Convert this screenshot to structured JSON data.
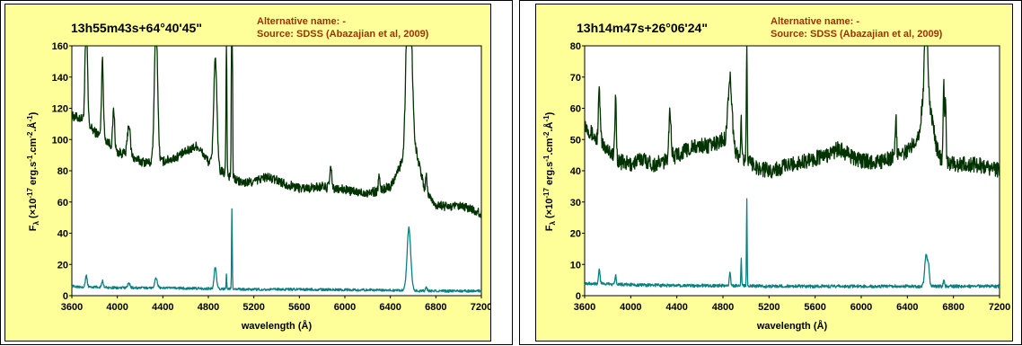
{
  "colors": {
    "panel_bg": "#ffff99",
    "upper_series": "#003300",
    "lower_series": "#0b8080",
    "alt_text": "#993300"
  },
  "chart_data": [
    {
      "type": "line",
      "title": "13h55m43s+64°40'45\"",
      "annotation": {
        "alt_name": "Alternative name: -",
        "source": "Source: SDSS (Abazajian et al, 2009)"
      },
      "xlabel": "wavelength (Å)",
      "ylabel": "F_λ (×10^-17 erg.s^-1.cm^-2.Å^-1)",
      "ylabel_parts": {
        "f": "F",
        "sub": "λ",
        "a": " (×10",
        "e1": "-17",
        "b": " erg.s",
        "e2": "-1",
        "c": ".cm",
        "e3": "-2",
        "d": ".Å",
        "e4": "-1",
        "close": ")"
      },
      "xlim": [
        3600,
        7200
      ],
      "ylim": [
        0,
        160
      ],
      "xticks": [
        3600,
        4000,
        4400,
        4800,
        5200,
        5600,
        6000,
        6400,
        6800,
        7200
      ],
      "yticks": [
        0,
        20,
        40,
        60,
        80,
        100,
        120,
        140,
        160
      ],
      "grid": false,
      "series": [
        {
          "color": "#003300",
          "continuum": [
            [
              3600,
              115
            ],
            [
              3700,
              113
            ],
            [
              3800,
              105
            ],
            [
              3900,
              100
            ],
            [
              4000,
              92
            ],
            [
              4100,
              90
            ],
            [
              4200,
              86
            ],
            [
              4300,
              85
            ],
            [
              4400,
              86
            ],
            [
              4500,
              88
            ],
            [
              4600,
              92
            ],
            [
              4700,
              96
            ],
            [
              4800,
              86
            ],
            [
              4900,
              80
            ],
            [
              5000,
              76
            ],
            [
              5100,
              72
            ],
            [
              5200,
              73
            ],
            [
              5300,
              76
            ],
            [
              5400,
              74
            ],
            [
              5500,
              71
            ],
            [
              5600,
              69
            ],
            [
              5700,
              69
            ],
            [
              5800,
              70
            ],
            [
              5900,
              68
            ],
            [
              6000,
              68
            ],
            [
              6100,
              66
            ],
            [
              6200,
              66
            ],
            [
              6300,
              67
            ],
            [
              6400,
              70
            ],
            [
              6500,
              85
            ],
            [
              6600,
              102
            ],
            [
              6700,
              68
            ],
            [
              6800,
              58
            ],
            [
              6900,
              57
            ],
            [
              7000,
              57
            ],
            [
              7100,
              56
            ],
            [
              7200,
              52
            ]
          ],
          "lines": [
            [
              3727,
              70,
              10
            ],
            [
              3869,
              50,
              8
            ],
            [
              3968,
              25,
              8
            ],
            [
              4101,
              20,
              12
            ],
            [
              4340,
              90,
              14
            ],
            [
              4861,
              70,
              14
            ],
            [
              4959,
              90,
              4
            ],
            [
              5007,
              200,
              4
            ],
            [
              5876,
              12,
              10
            ],
            [
              6300,
              10,
              6
            ],
            [
              6563,
              150,
              20
            ],
            [
              6716,
              12,
              6
            ]
          ],
          "noise": 3
        },
        {
          "color": "#0b8080",
          "continuum": [
            [
              3600,
              6
            ],
            [
              3800,
              5.5
            ],
            [
              4000,
              5
            ],
            [
              4400,
              5
            ],
            [
              4800,
              4.5
            ],
            [
              5200,
              4
            ],
            [
              5600,
              4
            ],
            [
              6000,
              3.8
            ],
            [
              6400,
              3.5
            ],
            [
              6800,
              3
            ],
            [
              7200,
              3
            ]
          ],
          "lines": [
            [
              3727,
              7,
              8
            ],
            [
              3869,
              4,
              8
            ],
            [
              4101,
              3,
              10
            ],
            [
              4340,
              6,
              12
            ],
            [
              4861,
              14,
              10
            ],
            [
              4959,
              9,
              3
            ],
            [
              5007,
              52,
              3
            ],
            [
              6563,
              40,
              16
            ],
            [
              6716,
              3,
              6
            ]
          ],
          "noise": 0.8
        }
      ]
    },
    {
      "type": "line",
      "title": "13h14m47s+26°06'24\"",
      "annotation": {
        "alt_name": "Alternative name: -",
        "source": "Source: SDSS (Abazajian et al, 2009)"
      },
      "xlabel": "wavelength (Å)",
      "ylabel": "F_λ (×10^-17 erg.s^-1.cm^-2.Å^-1)",
      "ylabel_parts": {
        "f": "F",
        "sub": "λ",
        "a": " (×10",
        "e1": "-17",
        "b": " erg.s",
        "e2": "-1",
        "c": ".cm",
        "e3": "-2",
        "d": ".Å",
        "e4": "-1",
        "close": ")"
      },
      "xlim": [
        3600,
        7200
      ],
      "ylim": [
        0,
        80
      ],
      "xticks": [
        3600,
        4000,
        4400,
        4800,
        5200,
        5600,
        6000,
        6400,
        6800,
        7200
      ],
      "yticks": [
        0,
        10,
        20,
        30,
        40,
        50,
        60,
        70,
        80
      ],
      "grid": false,
      "series": [
        {
          "color": "#003300",
          "continuum": [
            [
              3600,
              55
            ],
            [
              3700,
              50
            ],
            [
              3800,
              47
            ],
            [
              3900,
              43
            ],
            [
              4000,
              42
            ],
            [
              4100,
              44
            ],
            [
              4200,
              42
            ],
            [
              4300,
              43
            ],
            [
              4400,
              45
            ],
            [
              4500,
              47
            ],
            [
              4600,
              48
            ],
            [
              4700,
              48
            ],
            [
              4800,
              50
            ],
            [
              4900,
              46
            ],
            [
              5000,
              43
            ],
            [
              5100,
              41
            ],
            [
              5200,
              40
            ],
            [
              5300,
              41
            ],
            [
              5400,
              42
            ],
            [
              5500,
              43
            ],
            [
              5600,
              44
            ],
            [
              5700,
              45
            ],
            [
              5800,
              47
            ],
            [
              5900,
              45
            ],
            [
              6000,
              43
            ],
            [
              6100,
              43
            ],
            [
              6200,
              43
            ],
            [
              6300,
              45
            ],
            [
              6400,
              46
            ],
            [
              6500,
              52
            ],
            [
              6560,
              70
            ],
            [
              6650,
              48
            ],
            [
              6700,
              43
            ],
            [
              6800,
              42
            ],
            [
              6900,
              42
            ],
            [
              7000,
              42
            ],
            [
              7100,
              41
            ],
            [
              7200,
              40
            ]
          ],
          "lines": [
            [
              3727,
              16,
              8
            ],
            [
              3869,
              20,
              6
            ],
            [
              4340,
              15,
              10
            ],
            [
              4861,
              22,
              18
            ],
            [
              4959,
              12,
              4
            ],
            [
              5007,
              40,
              4
            ],
            [
              6300,
              12,
              6
            ],
            [
              6563,
              40,
              10
            ],
            [
              6716,
              25,
              5
            ],
            [
              6731,
              22,
              5
            ]
          ],
          "noise": 2.5
        },
        {
          "color": "#0b8080",
          "continuum": [
            [
              3600,
              4
            ],
            [
              4000,
              3.5
            ],
            [
              4400,
              3.2
            ],
            [
              4800,
              3.2
            ],
            [
              5200,
              3
            ],
            [
              5600,
              3
            ],
            [
              6000,
              3
            ],
            [
              6400,
              3
            ],
            [
              6800,
              3
            ],
            [
              7200,
              3
            ]
          ],
          "lines": [
            [
              3727,
              5,
              6
            ],
            [
              3869,
              3,
              6
            ],
            [
              4861,
              4,
              6
            ],
            [
              4959,
              9,
              3
            ],
            [
              5007,
              28,
              3
            ],
            [
              6563,
              10,
              12
            ],
            [
              6585,
              5,
              8
            ],
            [
              6716,
              2,
              5
            ]
          ],
          "noise": 0.5
        }
      ]
    }
  ]
}
